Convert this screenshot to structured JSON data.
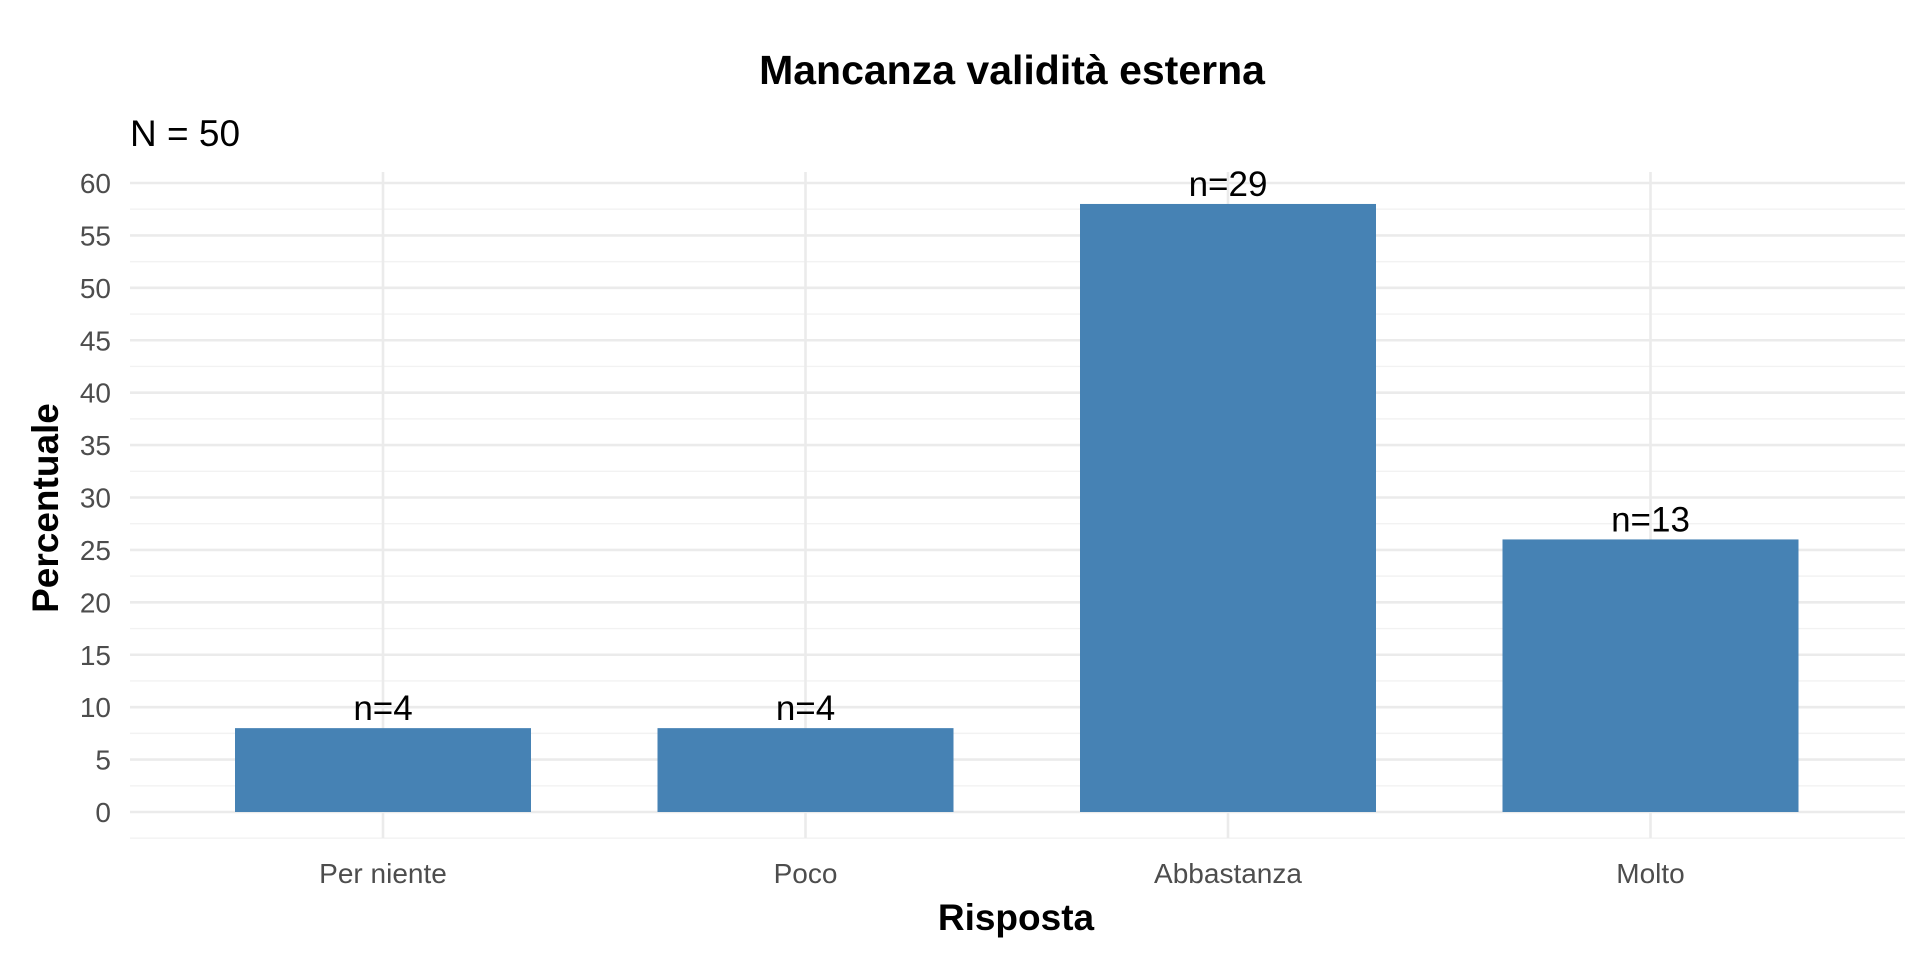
{
  "chart_data": {
    "type": "bar",
    "title": "Mancanza validità esterna",
    "subtitle": "N = 50",
    "xlabel": "Risposta",
    "ylabel": "Percentuale",
    "categories": [
      "Per niente",
      "Poco",
      "Abbastanza",
      "Molto"
    ],
    "values": [
      8,
      8,
      58,
      26
    ],
    "data_labels": [
      "n=4",
      "n=4",
      "n=29",
      "n=13"
    ],
    "ylim": [
      0,
      60
    ],
    "yticks": [
      0,
      5,
      10,
      15,
      20,
      25,
      30,
      35,
      40,
      45,
      50,
      55,
      60
    ],
    "grid": true,
    "legend": "none",
    "bar_color": "#4682B4"
  }
}
